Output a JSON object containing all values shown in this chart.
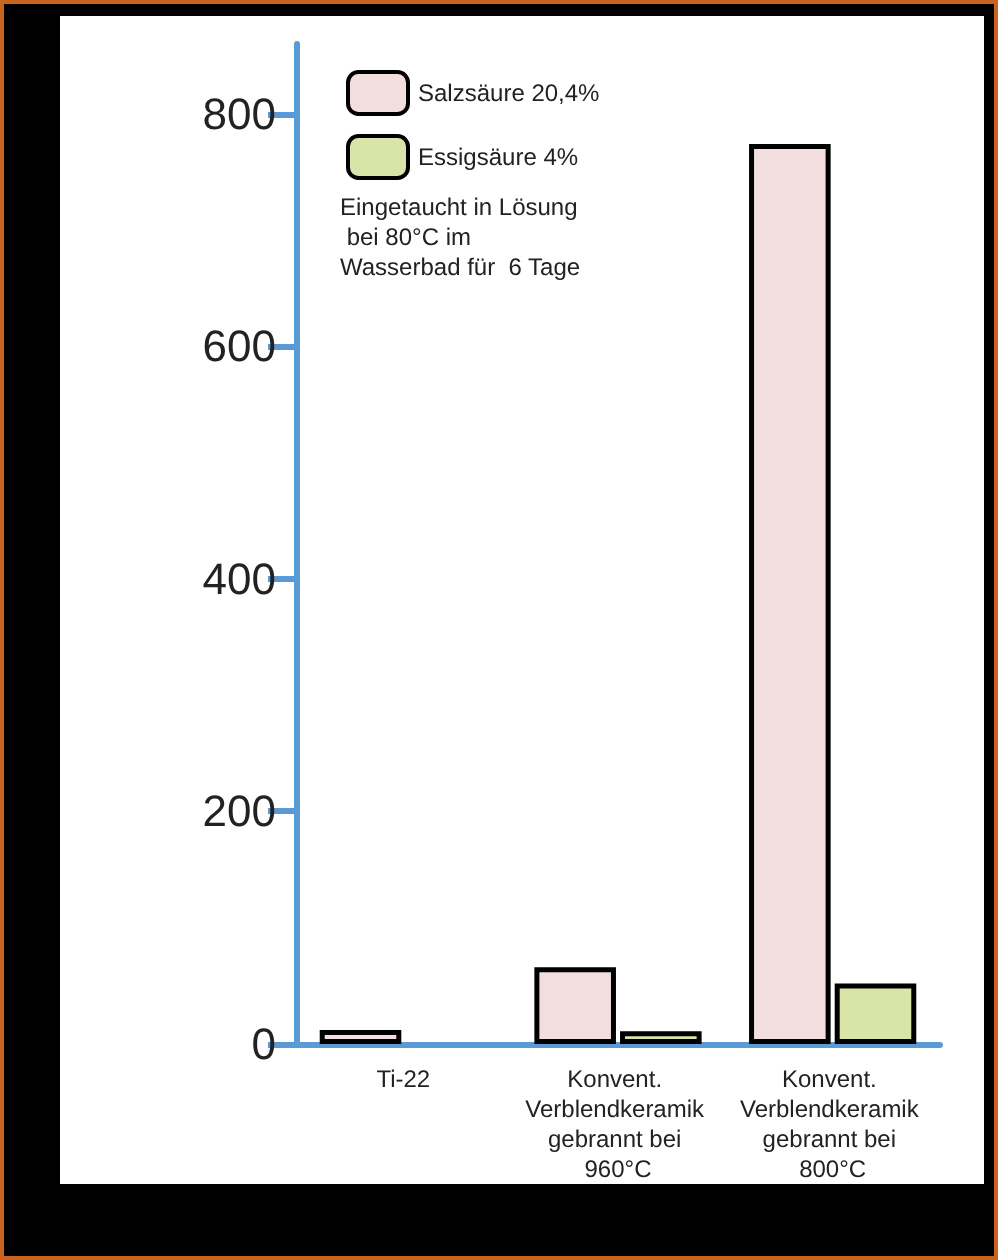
{
  "chart_data": {
    "type": "bar",
    "categories": [
      "Ti-22",
      "Konvent. Verblendkeramik gebrannt bei 960°C",
      "Konvent. Verblendkeramik gebrannt bei 800°C"
    ],
    "series": [
      {
        "name": "Salzsäure 20,4%",
        "color": "#f2dede",
        "values": [
          12,
          66,
          774
        ]
      },
      {
        "name": "Essigsäure 4%",
        "color": "#d8e4a8",
        "values": [
          null,
          11,
          52
        ]
      }
    ],
    "ylim": [
      0,
      860
    ],
    "yticks": [
      0,
      200,
      400,
      600,
      800
    ],
    "grid": false,
    "legend": "top left",
    "annotations": [
      "Eingetaucht in Lösung bei 80°C im Wasserbad für  6 Tage"
    ]
  }
}
